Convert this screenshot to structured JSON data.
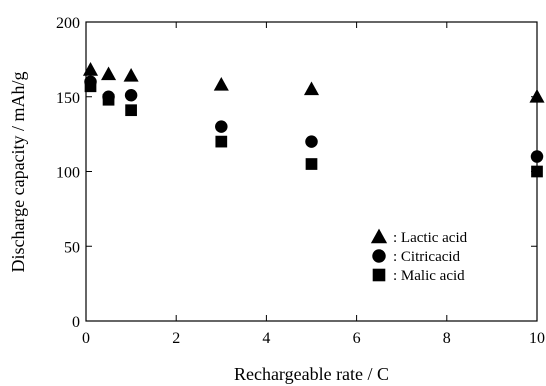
{
  "chart_data": {
    "type": "scatter",
    "title": "",
    "xlabel": "Rechargeable rate / C",
    "ylabel": "Discharge capacity / mAh/g",
    "xlim": [
      0,
      10
    ],
    "ylim": [
      0,
      200
    ],
    "xticks": [
      0,
      2,
      4,
      6,
      8,
      10
    ],
    "yticks": [
      0,
      50,
      100,
      150,
      200
    ],
    "grid": false,
    "legend_position": "bottom-right",
    "series": [
      {
        "name": "Lactic acid",
        "legend_label": ": Lactic acid",
        "marker": "triangle",
        "color": "#000000",
        "x": [
          0.1,
          0.5,
          1,
          3,
          5,
          10
        ],
        "y": [
          168,
          165,
          164,
          158,
          155,
          150
        ]
      },
      {
        "name": "Citricacid",
        "legend_label": ": Citricacid",
        "marker": "circle",
        "color": "#000000",
        "x": [
          0.1,
          0.5,
          1,
          3,
          5,
          10
        ],
        "y": [
          160,
          150,
          151,
          130,
          120,
          110
        ]
      },
      {
        "name": "Malic acid",
        "legend_label": ": Malic acid",
        "marker": "square",
        "color": "#000000",
        "x": [
          0.1,
          0.5,
          1,
          3,
          5,
          10
        ],
        "y": [
          157,
          148,
          141,
          120,
          105,
          100
        ]
      }
    ]
  }
}
